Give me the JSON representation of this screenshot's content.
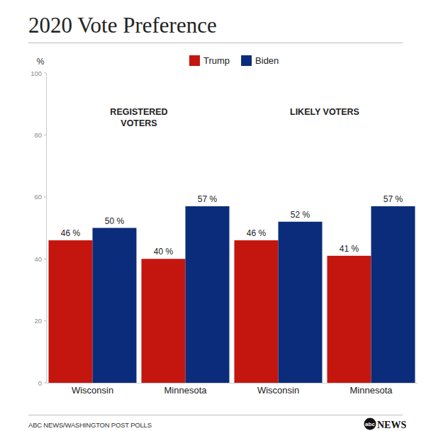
{
  "chart_data": {
    "type": "bar",
    "title": "2020 Vote Preference",
    "ylabel": "%",
    "categories": [
      "Wisconsin",
      "Minnesota",
      "Wisconsin",
      "Minnesota"
    ],
    "series": [
      {
        "name": "Trump",
        "color": "#c4150f",
        "values": [
          46,
          40,
          46,
          41
        ],
        "value_labels": [
          "46 %",
          "40 %",
          "46 %",
          "41 %"
        ]
      },
      {
        "name": "Biden",
        "color": "#0b2c7a",
        "values": [
          50,
          57,
          52,
          57
        ],
        "value_labels": [
          "50 %",
          "57 %",
          "52 %",
          "57 %"
        ]
      }
    ],
    "ylim": [
      0,
      100
    ],
    "yticks": [
      0,
      20,
      40,
      60,
      80,
      100
    ],
    "grid": false,
    "legend": "top",
    "data_labels": true,
    "annotations": [
      "REGISTERED VOTERS",
      "LIKELY VOTERS"
    ],
    "source": "ABC NEWS/WASHINGTON POST POLLS",
    "logo": [
      "abc",
      "NEWS"
    ]
  }
}
